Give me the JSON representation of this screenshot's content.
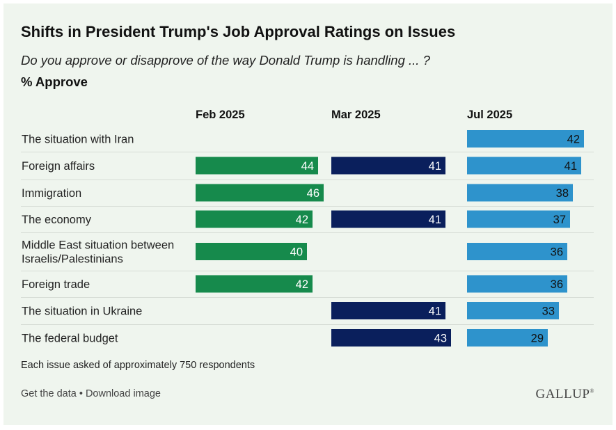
{
  "chart_data": {
    "type": "bar",
    "title": "Shifts in President Trump's Job Approval Ratings on Issues",
    "subtitle": "Do you approve or disapprove of the way Donald Trump is handling ... ?",
    "metric_label": "% Approve",
    "categories": [
      "The situation with Iran",
      "Foreign affairs",
      "Immigration",
      "The economy",
      "Middle East situation between Israelis/Palestinians",
      "Foreign trade",
      "The situation in Ukraine",
      "The federal budget"
    ],
    "series": [
      {
        "name": "Feb 2025",
        "color": "#168a4c",
        "values": [
          null,
          44,
          46,
          42,
          40,
          42,
          null,
          null
        ]
      },
      {
        "name": "Mar 2025",
        "color": "#0a1f5c",
        "values": [
          null,
          41,
          null,
          41,
          null,
          null,
          41,
          43
        ]
      },
      {
        "name": "Jul 2025",
        "color": "#2e93cc",
        "values": [
          42,
          41,
          38,
          37,
          36,
          36,
          33,
          29
        ]
      }
    ],
    "note": "Each issue asked of approximately 750 respondents"
  },
  "footer": {
    "get_data": "Get the data",
    "separator": " • ",
    "download": "Download image",
    "logo": "GALLUP"
  }
}
